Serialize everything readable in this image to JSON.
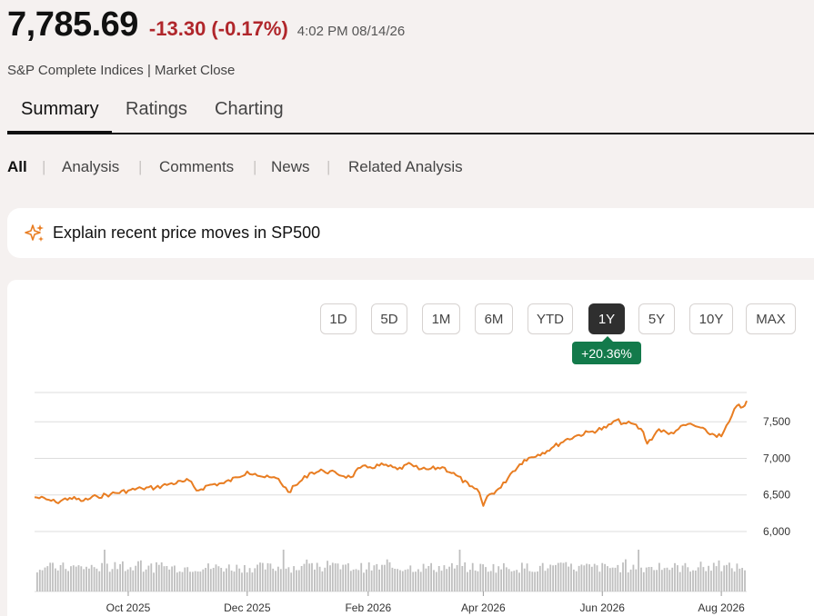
{
  "quote": {
    "price": "7,785.69",
    "change": "-13.30 (-0.17%)",
    "timestamp": "4:02 PM 08/14/26",
    "source": "S&P Complete Indices | Market Close",
    "change_color": "#b0262b"
  },
  "tabs": [
    {
      "label": "Summary",
      "active": true
    },
    {
      "label": "Ratings",
      "active": false
    },
    {
      "label": "Charting",
      "active": false
    }
  ],
  "filters": [
    {
      "label": "All",
      "active": true
    },
    {
      "label": "Analysis",
      "active": false
    },
    {
      "label": "Comments",
      "active": false
    },
    {
      "label": "News",
      "active": false
    },
    {
      "label": "Related Analysis",
      "active": false
    }
  ],
  "filter_separator": "|",
  "explain": {
    "icon": "sparkle-icon",
    "label": "Explain recent price moves in SP500"
  },
  "ranges": [
    {
      "label": "1D",
      "active": false
    },
    {
      "label": "5D",
      "active": false
    },
    {
      "label": "1M",
      "active": false
    },
    {
      "label": "6M",
      "active": false
    },
    {
      "label": "YTD",
      "active": false
    },
    {
      "label": "1Y",
      "active": true
    },
    {
      "label": "5Y",
      "active": false
    },
    {
      "label": "10Y",
      "active": false
    },
    {
      "label": "MAX",
      "active": false
    }
  ],
  "performance_badge": "+20.36%",
  "colors": {
    "line": "#e87d22",
    "volume": "#bfbfbf",
    "badge": "#137a4b",
    "grid": "#dddddd"
  },
  "chart_data": {
    "type": "line",
    "x_range": [
      "2025-08-14",
      "2026-08-14"
    ],
    "ylim": [
      6000,
      7900
    ],
    "y_ticks": [
      {
        "value": 6000,
        "label": "6,000"
      },
      {
        "value": 6500,
        "label": "6,500"
      },
      {
        "value": 7000,
        "label": "7,000"
      },
      {
        "value": 7500,
        "label": "7,500"
      }
    ],
    "x_ticks": [
      {
        "date": "2025-10-01",
        "label": "Oct 2025"
      },
      {
        "date": "2025-12-01",
        "label": "Dec 2025"
      },
      {
        "date": "2026-02-01",
        "label": "Feb 2026"
      },
      {
        "date": "2026-04-01",
        "label": "Apr 2026"
      },
      {
        "date": "2026-06-01",
        "label": "Jun 2026"
      },
      {
        "date": "2026-08-01",
        "label": "Aug 2026"
      }
    ],
    "grid": true,
    "series": [
      {
        "points": [
          [
            "2025-08-14",
            6470
          ],
          [
            "2025-08-20",
            6440
          ],
          [
            "2025-08-25",
            6400
          ],
          [
            "2025-09-01",
            6460
          ],
          [
            "2025-09-08",
            6420
          ],
          [
            "2025-09-15",
            6480
          ],
          [
            "2025-09-22",
            6510
          ],
          [
            "2025-10-01",
            6560
          ],
          [
            "2025-10-08",
            6590
          ],
          [
            "2025-10-15",
            6600
          ],
          [
            "2025-10-22",
            6650
          ],
          [
            "2025-10-29",
            6680
          ],
          [
            "2025-11-01",
            6700
          ],
          [
            "2025-11-05",
            6560
          ],
          [
            "2025-11-12",
            6640
          ],
          [
            "2025-11-19",
            6660
          ],
          [
            "2025-11-26",
            6740
          ],
          [
            "2025-12-01",
            6820
          ],
          [
            "2025-12-05",
            6790
          ],
          [
            "2025-12-10",
            6740
          ],
          [
            "2025-12-17",
            6720
          ],
          [
            "2025-12-22",
            6540
          ],
          [
            "2025-12-29",
            6700
          ],
          [
            "2026-01-02",
            6800
          ],
          [
            "2026-01-09",
            6830
          ],
          [
            "2026-01-16",
            6790
          ],
          [
            "2026-01-23",
            6740
          ],
          [
            "2026-01-28",
            6870
          ],
          [
            "2026-02-02",
            6880
          ],
          [
            "2026-02-09",
            6910
          ],
          [
            "2026-02-16",
            6850
          ],
          [
            "2026-02-23",
            6920
          ],
          [
            "2026-02-27",
            6850
          ],
          [
            "2026-03-04",
            6850
          ],
          [
            "2026-03-11",
            6880
          ],
          [
            "2026-03-18",
            6770
          ],
          [
            "2026-03-25",
            6620
          ],
          [
            "2026-03-30",
            6530
          ],
          [
            "2026-04-01",
            6350
          ],
          [
            "2026-04-03",
            6480
          ],
          [
            "2026-04-10",
            6600
          ],
          [
            "2026-04-15",
            6790
          ],
          [
            "2026-04-22",
            6980
          ],
          [
            "2026-04-29",
            7050
          ],
          [
            "2026-05-06",
            7140
          ],
          [
            "2026-05-13",
            7250
          ],
          [
            "2026-05-20",
            7320
          ],
          [
            "2026-05-27",
            7370
          ],
          [
            "2026-06-03",
            7420
          ],
          [
            "2026-06-08",
            7520
          ],
          [
            "2026-06-12",
            7480
          ],
          [
            "2026-06-17",
            7470
          ],
          [
            "2026-06-22",
            7360
          ],
          [
            "2026-06-24",
            7200
          ],
          [
            "2026-06-30",
            7400
          ],
          [
            "2026-07-05",
            7330
          ],
          [
            "2026-07-10",
            7400
          ],
          [
            "2026-07-15",
            7470
          ],
          [
            "2026-07-20",
            7430
          ],
          [
            "2026-07-25",
            7350
          ],
          [
            "2026-08-01",
            7300
          ],
          [
            "2026-08-05",
            7500
          ],
          [
            "2026-08-09",
            7720
          ],
          [
            "2026-08-12",
            7700
          ],
          [
            "2026-08-14",
            7786
          ]
        ]
      }
    ],
    "volume": {
      "seed": 7,
      "base": 0.45,
      "spikes": [
        "2025-09-19",
        "2025-12-19",
        "2026-03-20",
        "2026-06-19"
      ]
    }
  }
}
